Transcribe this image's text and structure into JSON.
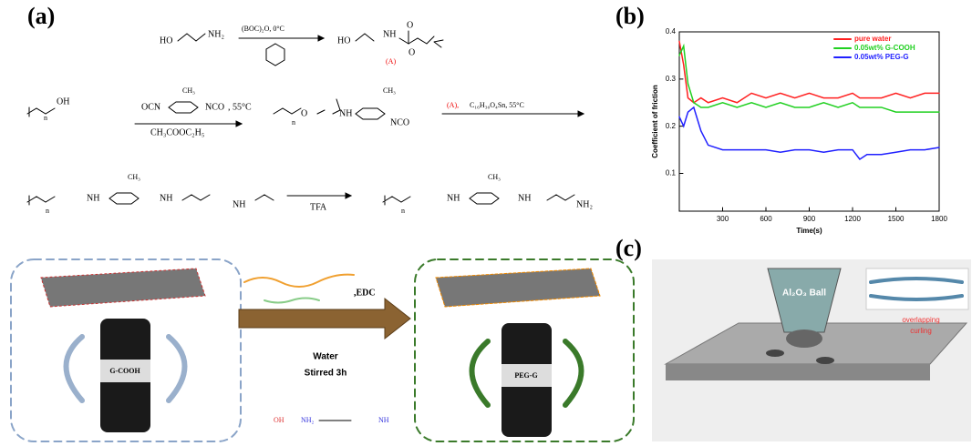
{
  "panels": {
    "a": "(a)",
    "b": "(b)",
    "c": "(c)"
  },
  "scheme": {
    "row1": {
      "reactant_ho": "HO",
      "reactant_nh2": "NH₂",
      "reagent": "(BOC)₂O, 0°C",
      "product_ho": "HO",
      "product_nh": "NH",
      "product_o": "O",
      "product_o2": "O",
      "label_a": "(A)"
    },
    "row2": {
      "peg_oh": "OH",
      "peg_n": "n",
      "ocn": "OCN",
      "ch3": "CH₃",
      "nco": "NCO",
      "temp": ", 55°C",
      "solvent": "CH₃COOC₂H₅",
      "prod_o": "O",
      "prod_n": "n",
      "prod_nh": "NH",
      "prod_ch3": "CH₃",
      "prod_nco": "NCO",
      "next_a": "(A),",
      "next_reagent": "C₁₆H₃₀O₄Sn, 55°C"
    },
    "row3": {
      "n": "n",
      "nh1": "NH",
      "ch3": "CH₃",
      "nh2": "NH",
      "nh3": "NH",
      "tfa": "TFA",
      "p_n": "n",
      "p_nh": "NH",
      "p_ch3": "CH₃",
      "p_nh2": "NH",
      "p_nh3": "NH₂"
    }
  },
  "bottom": {
    "vial1": "G-COOH",
    "edc": ",EDC",
    "water": "Water",
    "stirred": "Stirred 3h",
    "oh": "OH",
    "nh2": "NH₂",
    "nh": "NH",
    "vial2": "PEG-G"
  },
  "panel_c": {
    "ball": "Al₂O₃  Ball",
    "overlapping": "overlapping",
    "curling": "curling"
  },
  "chart_data": {
    "type": "line",
    "x_label": "Time(s)",
    "y_label": "Coefficient of friction",
    "x": [
      0,
      30,
      60,
      100,
      150,
      200,
      300,
      400,
      500,
      600,
      700,
      800,
      900,
      1000,
      1100,
      1200,
      1250,
      1300,
      1400,
      1500,
      1600,
      1700,
      1800
    ],
    "series": [
      {
        "name": "pure water",
        "color": "#ff2020",
        "values": [
          0.38,
          0.33,
          0.26,
          0.25,
          0.26,
          0.25,
          0.26,
          0.25,
          0.27,
          0.26,
          0.27,
          0.26,
          0.27,
          0.26,
          0.26,
          0.27,
          0.26,
          0.26,
          0.26,
          0.27,
          0.26,
          0.27,
          0.27
        ]
      },
      {
        "name": "0.05wt% G-COOH",
        "color": "#20d020",
        "values": [
          0.35,
          0.37,
          0.29,
          0.25,
          0.24,
          0.24,
          0.25,
          0.24,
          0.25,
          0.24,
          0.25,
          0.24,
          0.24,
          0.25,
          0.24,
          0.25,
          0.24,
          0.24,
          0.24,
          0.23,
          0.23,
          0.23,
          0.23
        ]
      },
      {
        "name": "0.05wt% PEG-G",
        "color": "#2020ff",
        "values": [
          0.22,
          0.2,
          0.23,
          0.24,
          0.19,
          0.16,
          0.15,
          0.15,
          0.15,
          0.15,
          0.145,
          0.15,
          0.15,
          0.145,
          0.15,
          0.15,
          0.13,
          0.14,
          0.14,
          0.145,
          0.15,
          0.15,
          0.155
        ]
      }
    ],
    "xlim": [
      0,
      1800
    ],
    "ylim": [
      0.02,
      0.4
    ],
    "xticks": [
      300,
      600,
      900,
      1200,
      1500,
      1800
    ],
    "yticks": [
      0.1,
      0.2,
      0.3,
      0.4
    ],
    "legend": "upper-right"
  }
}
